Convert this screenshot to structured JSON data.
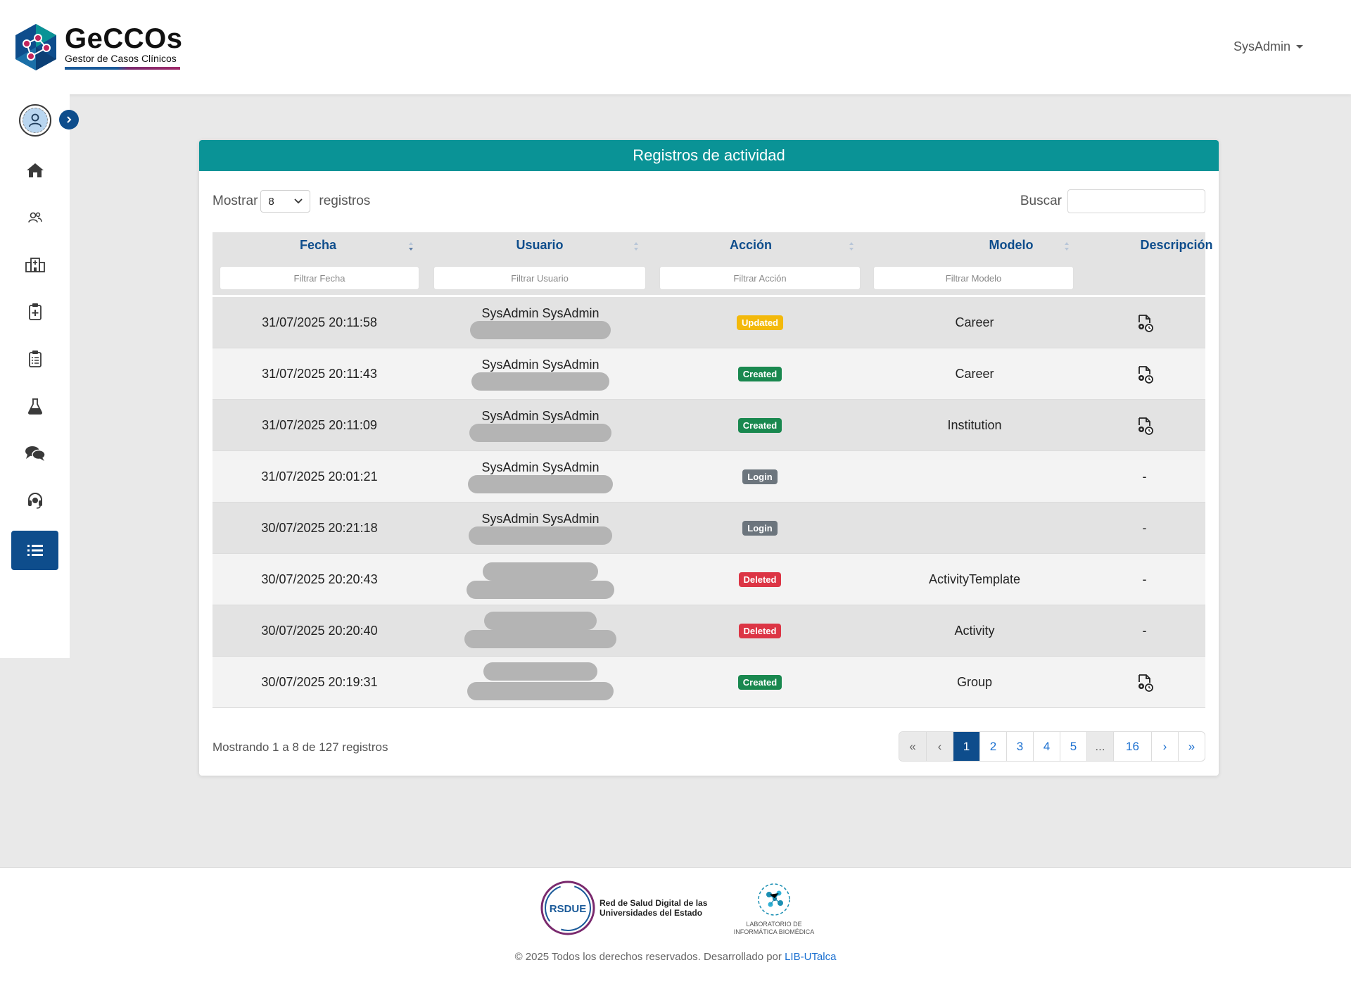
{
  "header": {
    "app_name": "GeCCOs",
    "app_subtitle": "Gestor de Casos Clínicos",
    "user_menu_label": "SysAdmin"
  },
  "sidebar": {
    "items": [
      {
        "name": "home",
        "icon": "home-icon"
      },
      {
        "name": "users",
        "icon": "users-icon"
      },
      {
        "name": "institutions",
        "icon": "hospital-icon"
      },
      {
        "name": "clinical-cases",
        "icon": "clipboard-plus-icon"
      },
      {
        "name": "activities",
        "icon": "clipboard-list-icon"
      },
      {
        "name": "lab",
        "icon": "flask-icon"
      },
      {
        "name": "forum",
        "icon": "chat-icon"
      },
      {
        "name": "support",
        "icon": "headset-icon"
      },
      {
        "name": "activity-log",
        "icon": "list-icon",
        "active": true
      }
    ]
  },
  "card": {
    "title": "Registros de actividad",
    "show_label": "Mostrar",
    "show_value": "8",
    "records_label": "registros",
    "search_label": "Buscar",
    "columns": [
      "Fecha",
      "Usuario",
      "Acción",
      "Modelo",
      "Descripción"
    ],
    "filters": [
      "Filtrar Fecha",
      "Filtrar Usuario",
      "Filtrar Acción",
      "Filtrar Modelo"
    ],
    "rows": [
      {
        "fecha": "31/07/2025 20:11:58",
        "usuario": "SysAdmin SysAdmin",
        "accion": "Updated",
        "modelo": "Career",
        "descripcion": "icon"
      },
      {
        "fecha": "31/07/2025 20:11:43",
        "usuario": "SysAdmin SysAdmin",
        "accion": "Created",
        "modelo": "Career",
        "descripcion": "icon"
      },
      {
        "fecha": "31/07/2025 20:11:09",
        "usuario": "SysAdmin SysAdmin",
        "accion": "Created",
        "modelo": "Institution",
        "descripcion": "icon"
      },
      {
        "fecha": "31/07/2025 20:01:21",
        "usuario": "SysAdmin SysAdmin",
        "accion": "Login",
        "modelo": "",
        "descripcion": "-"
      },
      {
        "fecha": "30/07/2025 20:21:18",
        "usuario": "SysAdmin SysAdmin",
        "accion": "Login",
        "modelo": "",
        "descripcion": "-"
      },
      {
        "fecha": "30/07/2025 20:20:43",
        "usuario": "",
        "accion": "Deleted",
        "modelo": "ActivityTemplate",
        "descripcion": "-"
      },
      {
        "fecha": "30/07/2025 20:20:40",
        "usuario": "",
        "accion": "Deleted",
        "modelo": "Activity",
        "descripcion": "-"
      },
      {
        "fecha": "30/07/2025 20:19:31",
        "usuario": "",
        "accion": "Created",
        "modelo": "Group",
        "descripcion": "icon"
      }
    ],
    "info": "Mostrando 1 a 8 de 127 registros",
    "pagination": [
      "«",
      "‹",
      "1",
      "2",
      "3",
      "4",
      "5",
      "...",
      "16",
      "›",
      "»"
    ],
    "current_page": "1"
  },
  "footer": {
    "rsdue_badge": "RSDUE",
    "rsdue_text": "Red de Salud Digital de las Universidades del Estado",
    "lib_text": "LABORATORIO DE INFORMÁTICA BIOMÉDICA",
    "copyright": "© 2025 Todos los derechos reservados. Desarrollado por",
    "link_text": "LIB-UTalca"
  },
  "colors": {
    "primary": "#0e4d8c",
    "header_teal": "#0a9396",
    "updated": "#f3b90b",
    "created": "#19884f",
    "login": "#6c757d",
    "deleted": "#dc3545"
  }
}
